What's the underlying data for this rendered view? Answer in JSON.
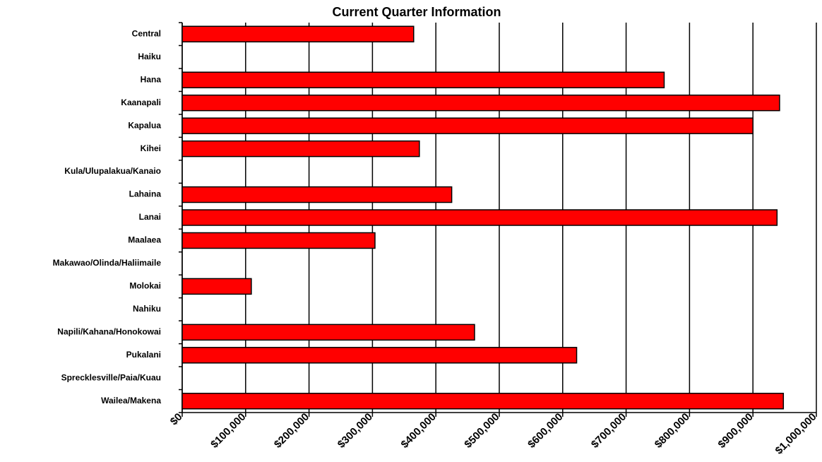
{
  "chart_data": {
    "type": "hbar",
    "title": "Current Quarter Information",
    "categories": [
      "Central",
      "Haiku",
      "Hana",
      "Kaanapali",
      "Kapalua",
      "Kihei",
      "Kula/Ulupalakua/Kanaio",
      "Lahaina",
      "Lanai",
      "Maalaea",
      "Makawao/Olinda/Haliimaile",
      "Molokai",
      "Nahiku",
      "Napili/Kahana/Honokowai",
      "Pukalani",
      "Sprecklesville/Paia/Kuau",
      "Wailea/Makena"
    ],
    "values": [
      365000,
      null,
      760000,
      942000,
      900000,
      374000,
      null,
      425000,
      938000,
      304000,
      null,
      109000,
      null,
      461000,
      622000,
      null,
      948000
    ],
    "color": "#ff0000",
    "xlim": [
      0,
      1000000
    ],
    "xticks": [
      {
        "value": 0,
        "label": "$0"
      },
      {
        "value": 100000,
        "label": "$100,000"
      },
      {
        "value": 200000,
        "label": "$200,000"
      },
      {
        "value": 300000,
        "label": "$300,000"
      },
      {
        "value": 400000,
        "label": "$400,000"
      },
      {
        "value": 500000,
        "label": "$500,000"
      },
      {
        "value": 600000,
        "label": "$600,000"
      },
      {
        "value": 700000,
        "label": "$700,000"
      },
      {
        "value": 800000,
        "label": "$800,000"
      },
      {
        "value": 900000,
        "label": "$900,000"
      },
      {
        "value": 1000000,
        "label": "$1,000,000"
      }
    ],
    "grid": true
  }
}
